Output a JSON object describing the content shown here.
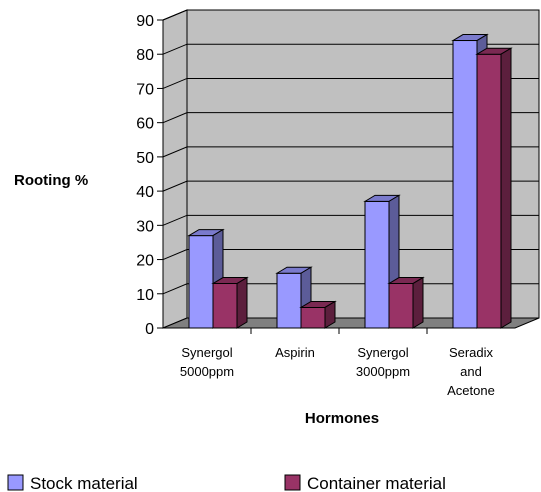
{
  "chart_data": {
    "type": "bar",
    "title": "",
    "xlabel": "Hormones",
    "ylabel": "Rooting %",
    "ylim": [
      0,
      90
    ],
    "yticks": [
      "0",
      "10",
      "20",
      "30",
      "40",
      "50",
      "60",
      "70",
      "80",
      "90"
    ],
    "categories": [
      [
        "Synergol",
        "5000ppm"
      ],
      [
        "Aspirin"
      ],
      [
        "Synergol",
        "3000ppm"
      ],
      [
        "Seradix",
        "and",
        "Acetone"
      ]
    ],
    "series": [
      {
        "name": "Stock material",
        "values": [
          27,
          16,
          37,
          84
        ],
        "color": "#9999ff",
        "side_color": "#5c5c99",
        "top_color": "#7a7acc"
      },
      {
        "name": "Container material",
        "values": [
          13,
          6,
          13,
          80
        ],
        "color": "#993366",
        "side_color": "#5c1f3d",
        "top_color": "#7a2952"
      }
    ],
    "grid": true,
    "wall_color": "#c0c0c0",
    "floor_color": "#808080",
    "legend_position": "bottom"
  }
}
